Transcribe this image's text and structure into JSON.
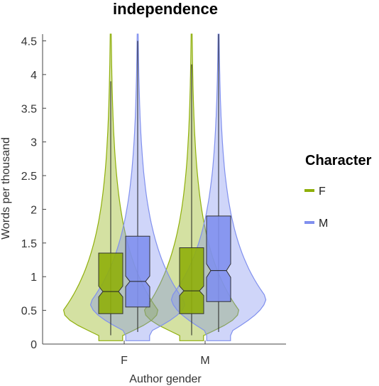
{
  "chart_data": {
    "type": "violin",
    "title": "independence",
    "xlabel": "Author gender",
    "ylabel": "Words per thousand",
    "categories": [
      "F",
      "M"
    ],
    "ylim": [
      0,
      4.6
    ],
    "yticks": [
      "0",
      "0.5",
      "1",
      "1.5",
      "2",
      "2.5",
      "3",
      "3.5",
      "4",
      "4.5"
    ],
    "legend": {
      "title": "Character",
      "position": "right"
    },
    "series": [
      {
        "name": "F",
        "color": "#8FAF0A",
        "groups": [
          {
            "category": "F",
            "min": 0.13,
            "q1": 0.45,
            "median": 0.78,
            "q3": 1.35,
            "max": 3.9,
            "notch_low": 0.7,
            "notch_high": 0.86,
            "violin_top": 4.6,
            "mode": 0.5
          },
          {
            "category": "M",
            "min": 0.13,
            "q1": 0.45,
            "median": 0.79,
            "q3": 1.43,
            "max": 4.15,
            "notch_low": 0.72,
            "notch_high": 0.86,
            "violin_top": 4.6,
            "mode": 0.5
          }
        ]
      },
      {
        "name": "M",
        "color": "#8090EE",
        "groups": [
          {
            "category": "F",
            "min": 0.18,
            "q1": 0.55,
            "median": 0.93,
            "q3": 1.6,
            "max": 4.5,
            "notch_low": 0.85,
            "notch_high": 1.01,
            "violin_top": 4.6,
            "mode": 0.62
          },
          {
            "category": "M",
            "min": 0.18,
            "q1": 0.63,
            "median": 1.09,
            "q3": 1.9,
            "max": 4.6,
            "notch_low": 0.99,
            "notch_high": 1.19,
            "violin_top": 4.6,
            "mode": 0.7
          }
        ]
      }
    ]
  }
}
